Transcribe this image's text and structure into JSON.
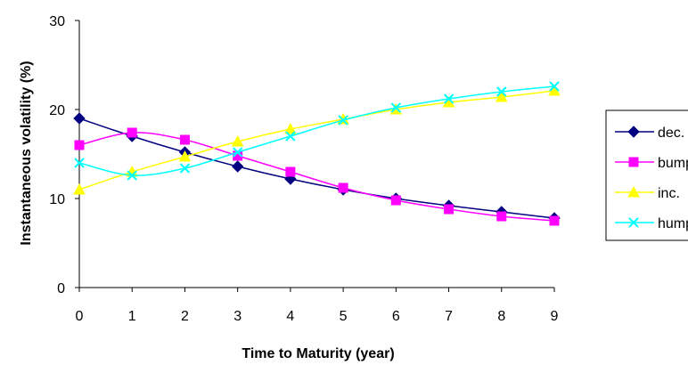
{
  "chart_data": {
    "type": "line",
    "xlabel": "Time to Maturity (year)",
    "ylabel": "Instantaneous volatility (%)",
    "x": [
      0,
      1,
      2,
      3,
      4,
      5,
      6,
      7,
      8,
      9
    ],
    "xlim": [
      0,
      9
    ],
    "ylim": [
      0,
      30
    ],
    "yticks": [
      0,
      10,
      20,
      30
    ],
    "grid": false,
    "legend_position": "right",
    "series": [
      {
        "name": "dec.",
        "color": "#000080",
        "marker": "diamond",
        "values": [
          19.0,
          17.0,
          15.2,
          13.6,
          12.2,
          11.0,
          10.0,
          9.2,
          8.5,
          7.8
        ]
      },
      {
        "name": "bump",
        "color": "#FF00FF",
        "marker": "square",
        "values": [
          16.0,
          17.4,
          16.6,
          14.8,
          13.0,
          11.2,
          9.8,
          8.8,
          8.0,
          7.5
        ]
      },
      {
        "name": "inc.",
        "color": "#FFFF00",
        "marker": "triangle",
        "values": [
          11.0,
          13.0,
          14.7,
          16.4,
          17.8,
          18.9,
          20.0,
          20.8,
          21.4,
          22.1
        ]
      },
      {
        "name": "hump",
        "color": "#00FFFF",
        "marker": "x",
        "values": [
          14.0,
          12.6,
          13.4,
          15.2,
          17.0,
          18.8,
          20.2,
          21.2,
          22.0,
          22.6
        ]
      }
    ]
  }
}
